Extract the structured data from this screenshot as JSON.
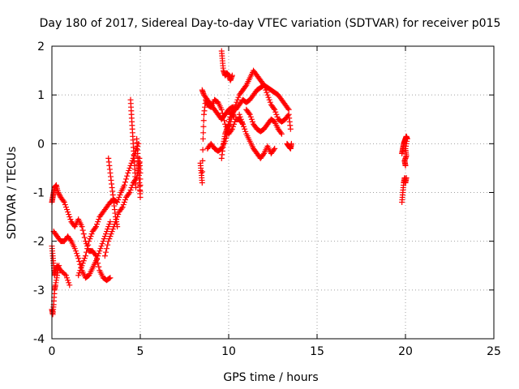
{
  "chart_data": {
    "type": "scatter",
    "title": "Day 180 of 2017, Sidereal Day-to-day VTEC variation (SDTVAR) for receiver p015",
    "xlabel": "GPS time / hours",
    "ylabel": "SDTVAR / TECUs",
    "xlim": [
      0,
      25
    ],
    "ylim": [
      -4,
      2
    ],
    "xticks": [
      0,
      5,
      10,
      15,
      20,
      25
    ],
    "yticks": [
      -4,
      -3,
      -2,
      -1,
      0,
      1,
      2
    ],
    "grid": true,
    "marker": "plus",
    "color": "#ff0000",
    "series": [
      {
        "name": "SDTVAR",
        "segments": [
          [
            [
              0.0,
              -3.4
            ],
            [
              0.05,
              -3.5
            ],
            [
              0.1,
              -3.3
            ],
            [
              0.15,
              -3.0
            ],
            [
              0.2,
              -2.9
            ],
            [
              0.3,
              -2.7
            ],
            [
              0.4,
              -2.5
            ]
          ],
          [
            [
              0.0,
              -2.1
            ],
            [
              0.05,
              -2.3
            ],
            [
              0.1,
              -2.5
            ],
            [
              0.15,
              -2.7
            ],
            [
              0.2,
              -2.6
            ],
            [
              0.3,
              -2.5
            ],
            [
              0.5,
              -2.6
            ],
            [
              0.8,
              -2.7
            ],
            [
              1.0,
              -2.9
            ]
          ],
          [
            [
              0.0,
              -1.2
            ],
            [
              0.05,
              -1.1
            ],
            [
              0.1,
              -1.0
            ],
            [
              0.15,
              -0.9
            ],
            [
              0.25,
              -0.85
            ],
            [
              0.35,
              -1.0
            ],
            [
              0.5,
              -1.1
            ],
            [
              0.7,
              -1.2
            ],
            [
              0.9,
              -1.4
            ],
            [
              1.1,
              -1.6
            ],
            [
              1.3,
              -1.7
            ],
            [
              1.5,
              -1.55
            ],
            [
              1.7,
              -1.7
            ],
            [
              1.9,
              -2.0
            ],
            [
              2.1,
              -2.2
            ],
            [
              2.3,
              -2.2
            ],
            [
              2.5,
              -2.3
            ],
            [
              2.7,
              -2.6
            ],
            [
              2.9,
              -2.75
            ],
            [
              3.1,
              -2.8
            ],
            [
              3.3,
              -2.75
            ]
          ],
          [
            [
              0.1,
              -1.8
            ],
            [
              0.3,
              -1.9
            ],
            [
              0.5,
              -2.0
            ],
            [
              0.7,
              -2.0
            ],
            [
              0.9,
              -1.9
            ],
            [
              1.1,
              -2.0
            ],
            [
              1.3,
              -2.15
            ],
            [
              1.5,
              -2.35
            ],
            [
              1.7,
              -2.6
            ],
            [
              1.9,
              -2.75
            ],
            [
              2.1,
              -2.7
            ],
            [
              2.3,
              -2.55
            ],
            [
              2.5,
              -2.4
            ],
            [
              2.7,
              -2.2
            ],
            [
              2.9,
              -2.0
            ],
            [
              3.1,
              -1.8
            ],
            [
              3.3,
              -1.6
            ]
          ],
          [
            [
              1.5,
              -2.7
            ],
            [
              1.7,
              -2.5
            ],
            [
              1.9,
              -2.3
            ],
            [
              2.1,
              -2.0
            ],
            [
              2.3,
              -1.8
            ],
            [
              2.5,
              -1.7
            ],
            [
              2.7,
              -1.5
            ],
            [
              2.9,
              -1.4
            ],
            [
              3.1,
              -1.3
            ],
            [
              3.3,
              -1.2
            ],
            [
              3.5,
              -1.15
            ],
            [
              3.7,
              -1.2
            ],
            [
              3.9,
              -1.0
            ],
            [
              4.1,
              -0.85
            ],
            [
              4.3,
              -0.6
            ],
            [
              4.5,
              -0.4
            ],
            [
              4.7,
              -0.2
            ],
            [
              4.9,
              0.0
            ]
          ],
          [
            [
              3.0,
              -2.3
            ],
            [
              3.2,
              -2.0
            ],
            [
              3.4,
              -1.8
            ],
            [
              3.6,
              -1.6
            ],
            [
              3.8,
              -1.4
            ],
            [
              4.0,
              -1.3
            ],
            [
              4.2,
              -1.1
            ],
            [
              4.4,
              -1.0
            ],
            [
              4.6,
              -0.8
            ],
            [
              4.8,
              -0.7
            ],
            [
              4.95,
              -0.4
            ]
          ],
          [
            [
              3.2,
              -0.3
            ],
            [
              3.3,
              -0.6
            ],
            [
              3.4,
              -0.9
            ],
            [
              3.5,
              -1.2
            ],
            [
              3.6,
              -1.5
            ],
            [
              3.7,
              -1.7
            ]
          ],
          [
            [
              4.45,
              0.9
            ],
            [
              4.5,
              0.6
            ],
            [
              4.55,
              0.3
            ],
            [
              4.6,
              0.0
            ],
            [
              4.65,
              -0.3
            ],
            [
              4.7,
              -0.6
            ],
            [
              4.75,
              -0.9
            ]
          ],
          [
            [
              4.8,
              0.1
            ],
            [
              4.85,
              -0.2
            ],
            [
              4.9,
              -0.5
            ],
            [
              4.95,
              -0.8
            ],
            [
              5.0,
              -1.1
            ],
            [
              5.0,
              -0.6
            ],
            [
              4.95,
              -0.3
            ]
          ],
          [
            [
              8.4,
              -0.4
            ],
            [
              8.45,
              -0.6
            ],
            [
              8.5,
              -0.8
            ],
            [
              8.55,
              0.1
            ],
            [
              8.6,
              0.6
            ],
            [
              8.7,
              0.9
            ],
            [
              8.8,
              0.8
            ],
            [
              9.0,
              0.75
            ],
            [
              9.2,
              0.9
            ],
            [
              9.4,
              0.85
            ],
            [
              9.6,
              0.7
            ],
            [
              9.8,
              0.4
            ],
            [
              10.0,
              0.2
            ],
            [
              10.2,
              0.3
            ],
            [
              10.4,
              0.5
            ],
            [
              10.6,
              0.5
            ],
            [
              10.8,
              0.4
            ]
          ],
          [
            [
              8.5,
              1.1
            ],
            [
              8.6,
              1.0
            ],
            [
              8.8,
              0.9
            ],
            [
              9.0,
              0.8
            ],
            [
              9.2,
              0.7
            ],
            [
              9.4,
              0.6
            ],
            [
              9.6,
              0.5
            ],
            [
              9.8,
              0.6
            ],
            [
              10.0,
              0.7
            ],
            [
              10.2,
              0.75
            ],
            [
              10.4,
              0.7
            ],
            [
              10.6,
              0.8
            ],
            [
              10.8,
              0.9
            ],
            [
              11.0,
              0.85
            ],
            [
              11.2,
              0.9
            ],
            [
              11.4,
              1.0
            ],
            [
              11.6,
              1.1
            ],
            [
              11.8,
              1.15
            ],
            [
              12.0,
              1.2
            ],
            [
              12.2,
              1.15
            ],
            [
              12.4,
              1.1
            ],
            [
              12.6,
              1.05
            ],
            [
              12.8,
              1.0
            ],
            [
              13.0,
              0.9
            ],
            [
              13.2,
              0.8
            ],
            [
              13.4,
              0.7
            ]
          ],
          [
            [
              9.6,
              1.9
            ],
            [
              9.65,
              1.7
            ],
            [
              9.7,
              1.5
            ],
            [
              9.8,
              1.4
            ],
            [
              9.9,
              1.45
            ],
            [
              10.0,
              1.4
            ],
            [
              10.1,
              1.3
            ],
            [
              10.2,
              1.4
            ]
          ],
          [
            [
              9.6,
              -0.3
            ],
            [
              9.7,
              0.0
            ],
            [
              9.8,
              0.2
            ],
            [
              9.9,
              0.3
            ],
            [
              10.0,
              0.4
            ],
            [
              10.1,
              0.6
            ],
            [
              10.2,
              0.65
            ],
            [
              10.3,
              0.55
            ]
          ],
          [
            [
              8.8,
              -0.1
            ],
            [
              9.0,
              0.0
            ],
            [
              9.2,
              -0.1
            ],
            [
              9.4,
              -0.15
            ],
            [
              9.6,
              -0.1
            ],
            [
              9.8,
              0.05
            ],
            [
              10.0,
              0.3
            ],
            [
              10.2,
              0.6
            ],
            [
              10.4,
              0.8
            ],
            [
              10.6,
              1.0
            ],
            [
              10.8,
              1.1
            ],
            [
              11.0,
              1.2
            ],
            [
              11.2,
              1.35
            ],
            [
              11.4,
              1.5
            ],
            [
              11.6,
              1.4
            ],
            [
              11.8,
              1.3
            ],
            [
              12.0,
              1.2
            ],
            [
              12.2,
              1.0
            ],
            [
              12.4,
              0.8
            ],
            [
              12.6,
              0.7
            ],
            [
              12.8,
              0.5
            ],
            [
              13.0,
              0.45
            ],
            [
              13.2,
              0.5
            ],
            [
              13.4,
              0.6
            ],
            [
              13.5,
              0.3
            ]
          ],
          [
            [
              10.6,
              0.6
            ],
            [
              10.8,
              0.4
            ],
            [
              11.0,
              0.2
            ],
            [
              11.2,
              0.05
            ],
            [
              11.4,
              -0.1
            ],
            [
              11.6,
              -0.2
            ],
            [
              11.8,
              -0.3
            ],
            [
              12.0,
              -0.2
            ],
            [
              12.2,
              -0.05
            ],
            [
              12.4,
              -0.2
            ],
            [
              12.6,
              -0.1
            ]
          ],
          [
            [
              11.0,
              0.7
            ],
            [
              11.2,
              0.6
            ],
            [
              11.4,
              0.4
            ],
            [
              11.6,
              0.3
            ],
            [
              11.8,
              0.25
            ],
            [
              12.0,
              0.3
            ],
            [
              12.2,
              0.4
            ],
            [
              12.4,
              0.5
            ],
            [
              12.6,
              0.45
            ],
            [
              12.8,
              0.3
            ],
            [
              13.0,
              0.2
            ]
          ],
          [
            [
              13.3,
              0.0
            ],
            [
              13.4,
              -0.05
            ],
            [
              13.5,
              -0.1
            ],
            [
              13.55,
              0.0
            ]
          ],
          [
            [
              19.8,
              -1.2
            ],
            [
              19.85,
              -1.0
            ],
            [
              19.9,
              -0.8
            ],
            [
              19.95,
              -0.7
            ],
            [
              20.0,
              -0.8
            ],
            [
              20.05,
              -0.7
            ]
          ],
          [
            [
              19.8,
              -0.2
            ],
            [
              19.85,
              -0.1
            ],
            [
              19.9,
              0.0
            ],
            [
              19.95,
              0.05
            ],
            [
              20.0,
              0.1
            ],
            [
              20.05,
              0.15
            ],
            [
              20.1,
              0.1
            ],
            [
              20.0,
              -0.1
            ],
            [
              20.05,
              -0.25
            ],
            [
              19.95,
              -0.35
            ],
            [
              20.0,
              -0.45
            ]
          ]
        ]
      }
    ]
  }
}
